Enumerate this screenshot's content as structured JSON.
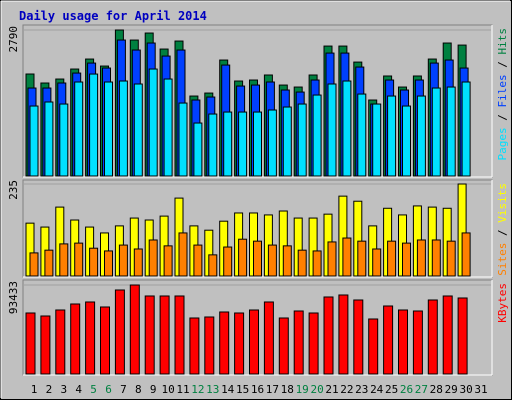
{
  "title": "Daily usage for April 2014",
  "legend_separator": " / ",
  "chart_data": [
    {
      "type": "bar",
      "ylim": [
        0,
        2790
      ],
      "yticks": [
        2790
      ],
      "series": [
        {
          "name": "Hits",
          "color": "#008040",
          "values": [
            1949,
            1777,
            1853,
            2044,
            2235,
            2101,
            2790,
            2598,
            2732,
            2426,
            2579,
            1528,
            1585,
            2216,
            1815,
            1834,
            1930,
            1738,
            1700,
            1930,
            2483,
            2483,
            2177,
            1452,
            1911,
            1700,
            1911,
            2235,
            2541,
            2502,
            null
          ]
        },
        {
          "name": "Files",
          "color": "#0040FF",
          "values": [
            1681,
            1681,
            1777,
            1967,
            2158,
            2063,
            2598,
            2407,
            2541,
            2292,
            2407,
            1452,
            1509,
            2120,
            1719,
            1738,
            1796,
            1643,
            1604,
            1834,
            2349,
            2349,
            2082,
            1375,
            1834,
            1643,
            1834,
            2158,
            2216,
            2063,
            null
          ]
        },
        {
          "name": "Pages",
          "color": "#00E0FF",
          "values": [
            1337,
            1414,
            1375,
            1796,
            1948,
            1796,
            1815,
            1758,
            2044,
            1853,
            1394,
            1012,
            1184,
            1222,
            1222,
            1222,
            1261,
            1318,
            1375,
            1547,
            1758,
            1815,
            1566,
            1375,
            1528,
            1337,
            1528,
            1681,
            1700,
            1796,
            null
          ]
        }
      ]
    },
    {
      "type": "bar",
      "ylim": [
        0,
        235
      ],
      "yticks": [
        235
      ],
      "series": [
        {
          "name": "Visits",
          "color": "#FFFF00",
          "values": [
            135,
            125,
            176,
            143,
            125,
            110,
            128,
            148,
            143,
            153,
            199,
            128,
            117,
            140,
            161,
            161,
            156,
            166,
            148,
            148,
            158,
            204,
            191,
            128,
            173,
            156,
            179,
            176,
            173,
            235,
            null
          ]
        },
        {
          "name": "Sites",
          "color": "#FF8000",
          "values": [
            59,
            66,
            82,
            84,
            71,
            64,
            79,
            69,
            92,
            77,
            110,
            79,
            54,
            74,
            94,
            89,
            79,
            77,
            66,
            64,
            87,
            97,
            89,
            69,
            89,
            84,
            92,
            92,
            89,
            110,
            null
          ]
        }
      ]
    },
    {
      "type": "bar",
      "ylim": [
        0,
        93433
      ],
      "yticks": [
        93433
      ],
      "categories": [
        "1",
        "2",
        "3",
        "4",
        "5",
        "6",
        "7",
        "8",
        "9",
        "10",
        "11",
        "12",
        "13",
        "14",
        "15",
        "16",
        "17",
        "18",
        "19",
        "20",
        "21",
        "22",
        "23",
        "24",
        "25",
        "26",
        "27",
        "28",
        "29",
        "30",
        "31"
      ],
      "highlight_indices": [
        4,
        5,
        11,
        12,
        18,
        19,
        25,
        26
      ],
      "highlight_color": "#008040",
      "series": [
        {
          "name": "KBytes",
          "color": "#FF0000",
          "values": [
            64050,
            60900,
            67200,
            73500,
            75600,
            70350,
            88200,
            93433,
            81900,
            81900,
            81900,
            58800,
            59850,
            65100,
            64050,
            67200,
            75600,
            58800,
            66150,
            64050,
            80850,
            82950,
            77700,
            57750,
            71400,
            67200,
            66150,
            77700,
            81900,
            79800,
            null
          ]
        }
      ]
    }
  ]
}
